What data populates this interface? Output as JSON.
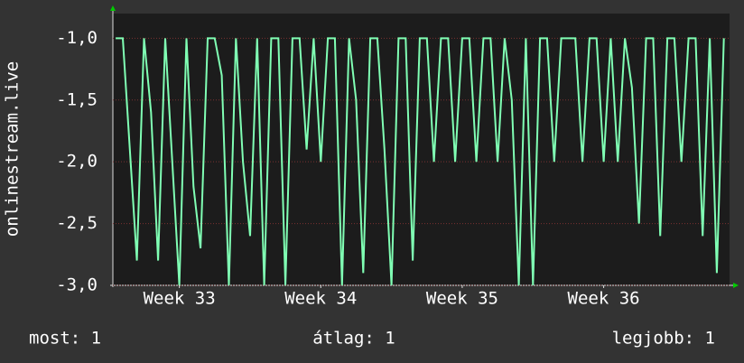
{
  "chart_data": {
    "type": "line",
    "y_label": "onlinestream.live",
    "x": [
      32.55,
      32.6,
      32.65,
      32.7,
      32.75,
      32.8,
      32.85,
      32.9,
      32.95,
      33.0,
      33.05,
      33.1,
      33.15,
      33.2,
      33.25,
      33.3,
      33.35,
      33.4,
      33.45,
      33.5,
      33.55,
      33.6,
      33.65,
      33.7,
      33.75,
      33.8,
      33.85,
      33.9,
      33.95,
      34.0,
      34.05,
      34.1,
      34.15,
      34.2,
      34.25,
      34.3,
      34.35,
      34.4,
      34.45,
      34.5,
      34.55,
      34.6,
      34.65,
      34.7,
      34.75,
      34.8,
      34.85,
      34.9,
      34.95,
      35.0,
      35.05,
      35.1,
      35.15,
      35.2,
      35.25,
      35.3,
      35.35,
      35.4,
      35.45,
      35.5,
      35.55,
      35.6,
      35.65,
      35.7,
      35.75,
      35.8,
      35.85,
      35.9,
      35.95,
      36.0,
      36.05,
      36.1,
      36.15,
      36.2,
      36.25,
      36.3,
      36.35,
      36.4,
      36.45,
      36.5,
      36.55,
      36.6,
      36.65,
      36.7,
      36.75,
      36.8,
      36.85
    ],
    "series": [
      {
        "name": "onlinestream.live",
        "color": "#80ffb4",
        "values": [
          -1.0,
          -1.0,
          -1.9,
          -2.8,
          -1.0,
          -1.6,
          -2.8,
          -1.0,
          -2.0,
          -3.0,
          -1.0,
          -2.2,
          -2.7,
          -1.0,
          -1.0,
          -1.3,
          -3.0,
          -1.0,
          -2.0,
          -2.6,
          -1.0,
          -3.0,
          -1.0,
          -1.0,
          -3.0,
          -1.0,
          -1.0,
          -1.9,
          -1.0,
          -2.0,
          -1.0,
          -1.0,
          -3.0,
          -1.0,
          -1.5,
          -2.9,
          -1.0,
          -1.0,
          -1.9,
          -3.0,
          -1.0,
          -1.0,
          -2.8,
          -1.0,
          -1.0,
          -2.0,
          -1.0,
          -1.0,
          -2.0,
          -1.0,
          -1.0,
          -2.0,
          -1.0,
          -1.0,
          -2.0,
          -1.0,
          -1.5,
          -3.0,
          -1.0,
          -3.0,
          -1.0,
          -1.0,
          -2.0,
          -1.0,
          -1.0,
          -1.0,
          -2.0,
          -1.0,
          -1.0,
          -2.0,
          -1.0,
          -2.0,
          -1.0,
          -1.4,
          -2.5,
          -1.0,
          -1.0,
          -2.6,
          -1.0,
          -1.0,
          -2.0,
          -1.0,
          -1.0,
          -2.6,
          -1.0,
          -2.9,
          -1.0
        ]
      }
    ],
    "xlim": [
      32.53,
      36.89
    ],
    "xticks": [
      {
        "value": 33,
        "label": "Week 33"
      },
      {
        "value": 34,
        "label": "Week 34"
      },
      {
        "value": 35,
        "label": "Week 35"
      },
      {
        "value": 36,
        "label": "Week 36"
      }
    ],
    "ylim": [
      -3.0,
      -0.8
    ],
    "yticks": [
      {
        "value": -3.0,
        "label": "-3,0"
      },
      {
        "value": -2.5,
        "label": "-2,5"
      },
      {
        "value": -2.0,
        "label": "-2,0"
      },
      {
        "value": -1.5,
        "label": "-1,5"
      },
      {
        "value": -1.0,
        "label": "-1,0"
      }
    ],
    "grid": true,
    "stats": [
      "most: 1",
      "átlag: 1",
      "legjobb: 1"
    ]
  }
}
